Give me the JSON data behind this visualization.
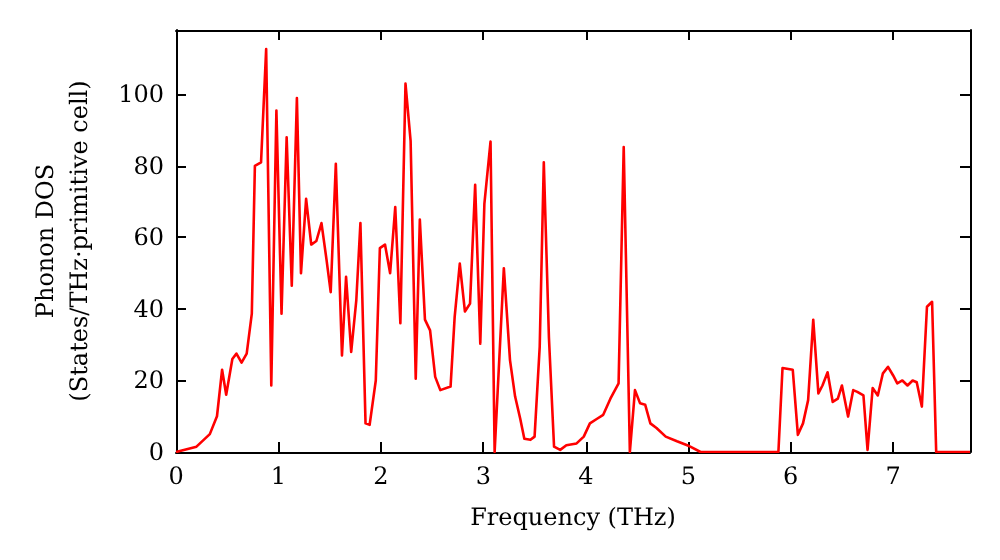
{
  "chart_data": {
    "type": "line",
    "xlabel": "Frequency (THz)",
    "ylabel": "Phonon DOS\n(States/THz·primitive cell)",
    "xlim": [
      0,
      7.75
    ],
    "ylim": [
      0,
      118
    ],
    "xticks": [
      0,
      1,
      2,
      3,
      4,
      5,
      6,
      7
    ],
    "yticks": [
      0,
      20,
      40,
      60,
      80,
      100
    ],
    "grid": false,
    "marker": "none",
    "line_style": "solid",
    "series": [
      {
        "color": "#ff0000",
        "x": [
          0,
          0.2,
          0.33,
          0.4,
          0.45,
          0.49,
          0.55,
          0.59,
          0.64,
          0.69,
          0.74,
          0.77,
          0.83,
          0.88,
          0.93,
          0.98,
          1.03,
          1.08,
          1.13,
          1.18,
          1.22,
          1.27,
          1.32,
          1.37,
          1.42,
          1.47,
          1.51,
          1.56,
          1.62,
          1.66,
          1.71,
          1.76,
          1.8,
          1.85,
          1.89,
          1.95,
          1.99,
          2.04,
          2.09,
          2.14,
          2.19,
          2.24,
          2.29,
          2.34,
          2.38,
          2.43,
          2.48,
          2.53,
          2.58,
          2.68,
          2.72,
          2.77,
          2.82,
          2.87,
          2.92,
          2.97,
          3.01,
          3.07,
          3.11,
          3.2,
          3.26,
          3.31,
          3.36,
          3.4,
          3.46,
          3.5,
          3.55,
          3.59,
          3.64,
          3.69,
          3.75,
          3.81,
          3.91,
          3.98,
          4.04,
          4.11,
          4.17,
          4.24,
          4.32,
          4.37,
          4.43,
          4.48,
          4.53,
          4.58,
          4.63,
          4.69,
          4.78,
          4.89,
          4.99,
          5.02,
          5.12,
          5.88,
          5.92,
          6.02,
          6.07,
          6.12,
          6.17,
          6.22,
          6.27,
          6.31,
          6.36,
          6.41,
          6.46,
          6.5,
          6.56,
          6.61,
          6.65,
          6.71,
          6.75,
          6.8,
          6.85,
          6.9,
          6.95,
          7,
          7.04,
          7.09,
          7.14,
          7.19,
          7.23,
          7.28,
          7.33,
          7.38,
          7.42,
          7.75
        ],
        "values": [
          0,
          1.5,
          5,
          10,
          23,
          16,
          26,
          27.5,
          25,
          27.5,
          38.7,
          80,
          81,
          112.7,
          18.6,
          95.5,
          38.7,
          88,
          46.5,
          99,
          50,
          70.8,
          58,
          59,
          64,
          53.6,
          44.7,
          80.6,
          27,
          49,
          28,
          42.5,
          64,
          8,
          7.6,
          20,
          57,
          58,
          50,
          68.5,
          36,
          103,
          87,
          20.5,
          65,
          37,
          34,
          21,
          17.3,
          18.3,
          37.8,
          52.7,
          39.3,
          41.5,
          74.7,
          30.3,
          69.4,
          86.8,
          0,
          51.4,
          25.7,
          15.5,
          9.3,
          3.7,
          3.4,
          4.3,
          29.4,
          81,
          32,
          1.5,
          0.6,
          1.9,
          2.4,
          4.3,
          8,
          9.3,
          10.4,
          14.9,
          19.2,
          85.3,
          0,
          17.3,
          13.6,
          13.2,
          8,
          6.7,
          4.3,
          3,
          1.9,
          1.5,
          0,
          0,
          23.5,
          23,
          4.8,
          8,
          14.5,
          37,
          16.4,
          18.6,
          22.3,
          14,
          14.9,
          18.6,
          9.9,
          17.3,
          16.8,
          15.8,
          0.6,
          17.9,
          15.8,
          22,
          23.8,
          21.4,
          19.2,
          20,
          18.6,
          20,
          19.5,
          12.7,
          40.6,
          42,
          0,
          0
        ]
      }
    ]
  }
}
